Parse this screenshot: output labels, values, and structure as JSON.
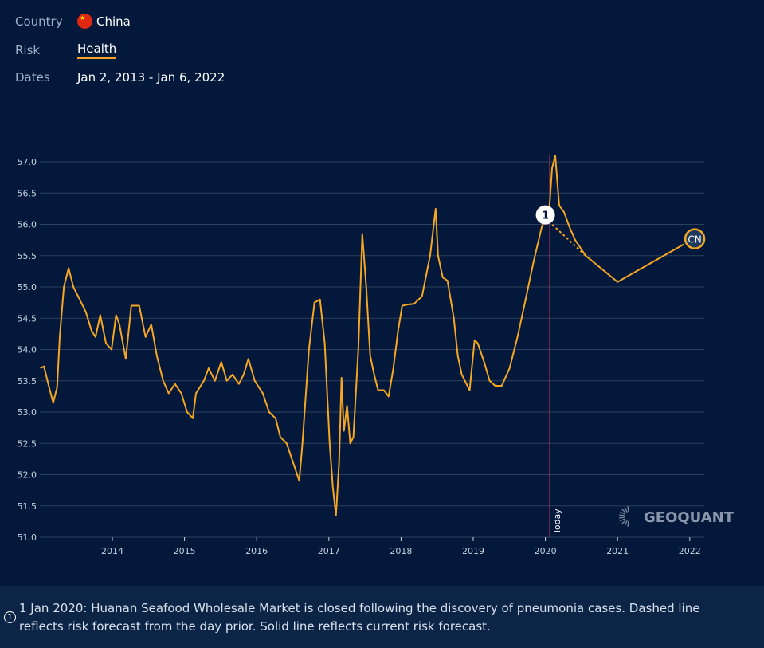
{
  "filters": {
    "country_label": "Country",
    "country_value": "China",
    "country_flag": "china-flag-icon",
    "risk_label": "Risk",
    "risk_value": "Health",
    "dates_label": "Dates",
    "dates_value": "Jan 2, 2013 - Jan 6, 2022"
  },
  "colors": {
    "background": "#03183a",
    "line": "#f5a623",
    "today": "#e0394a",
    "grid": "#2c3f5e"
  },
  "chart_data": {
    "type": "line",
    "title": "",
    "xlabel": "",
    "ylabel": "",
    "ylim": [
      51.0,
      57.0
    ],
    "xlim": [
      "2013-01-02",
      "2022-01-06"
    ],
    "yticks": [
      "51.0",
      "51.5",
      "52.0",
      "52.5",
      "53.0",
      "53.5",
      "54.0",
      "54.5",
      "55.0",
      "55.5",
      "56.0",
      "56.5",
      "57.0"
    ],
    "xticks": [
      "2014",
      "2015",
      "2016",
      "2017",
      "2018",
      "2019",
      "2020",
      "2021",
      "2022"
    ],
    "grid": true,
    "today": {
      "date": "2020-01-23",
      "label": "Today"
    },
    "annotation": {
      "date": "2020-01-01",
      "value": 56.1,
      "label": "1"
    },
    "end_label": "CN",
    "watermark": "GEOQUANT",
    "series": [
      {
        "points": [
          [
            "2013-01-02",
            53.7
          ],
          [
            "2013-01-20",
            53.73
          ],
          [
            "2013-02-15",
            53.4
          ],
          [
            "2013-03-08",
            53.15
          ],
          [
            "2013-03-28",
            53.4
          ],
          [
            "2013-04-10",
            54.2
          ],
          [
            "2013-05-01",
            55.0
          ],
          [
            "2013-05-25",
            55.3
          ],
          [
            "2013-06-18",
            55.0
          ],
          [
            "2013-07-20",
            54.8
          ],
          [
            "2013-08-20",
            54.6
          ],
          [
            "2013-09-18",
            54.3
          ],
          [
            "2013-10-08",
            54.2
          ],
          [
            "2013-11-01",
            54.55
          ],
          [
            "2013-11-30",
            54.1
          ],
          [
            "2013-12-28",
            54.0
          ],
          [
            "2014-01-20",
            54.55
          ],
          [
            "2014-02-06",
            54.4
          ],
          [
            "2014-03-10",
            53.85
          ],
          [
            "2014-04-07",
            54.7
          ],
          [
            "2014-05-17",
            54.7
          ],
          [
            "2014-06-18",
            54.2
          ],
          [
            "2014-07-17",
            54.4
          ],
          [
            "2014-08-14",
            53.9
          ],
          [
            "2014-09-15",
            53.5
          ],
          [
            "2014-10-13",
            53.3
          ],
          [
            "2014-11-14",
            53.45
          ],
          [
            "2014-12-16",
            53.3
          ],
          [
            "2015-01-14",
            53.0
          ],
          [
            "2015-02-12",
            52.9
          ],
          [
            "2015-02-28",
            53.3
          ],
          [
            "2015-04-09",
            53.5
          ],
          [
            "2015-05-03",
            53.7
          ],
          [
            "2015-06-04",
            53.5
          ],
          [
            "2015-07-06",
            53.8
          ],
          [
            "2015-08-03",
            53.5
          ],
          [
            "2015-09-01",
            53.6
          ],
          [
            "2015-10-03",
            53.45
          ],
          [
            "2015-10-27",
            53.6
          ],
          [
            "2015-11-20",
            53.85
          ],
          [
            "2015-12-22",
            53.5
          ],
          [
            "2016-02-01",
            53.3
          ],
          [
            "2016-03-04",
            53.0
          ],
          [
            "2016-04-06",
            52.9
          ],
          [
            "2016-04-30",
            52.6
          ],
          [
            "2016-06-01",
            52.5
          ],
          [
            "2016-07-03",
            52.2
          ],
          [
            "2016-08-04",
            51.9
          ],
          [
            "2016-08-20",
            52.5
          ],
          [
            "2016-09-22",
            54.0
          ],
          [
            "2016-10-20",
            54.75
          ],
          [
            "2016-11-17",
            54.8
          ],
          [
            "2016-12-11",
            54.1
          ],
          [
            "2017-01-05",
            52.5
          ],
          [
            "2017-01-21",
            51.8
          ],
          [
            "2017-02-06",
            51.35
          ],
          [
            "2017-02-22",
            52.2
          ],
          [
            "2017-03-06",
            53.55
          ],
          [
            "2017-03-18",
            52.7
          ],
          [
            "2017-04-03",
            53.1
          ],
          [
            "2017-04-19",
            52.5
          ],
          [
            "2017-05-05",
            52.6
          ],
          [
            "2017-05-30",
            54.0
          ],
          [
            "2017-06-19",
            55.85
          ],
          [
            "2017-07-09",
            55.0
          ],
          [
            "2017-07-29",
            53.9
          ],
          [
            "2017-08-18",
            53.6
          ],
          [
            "2017-09-07",
            53.35
          ],
          [
            "2017-10-06",
            53.35
          ],
          [
            "2017-10-30",
            53.25
          ],
          [
            "2017-11-23",
            53.7
          ],
          [
            "2017-12-17",
            54.3
          ],
          [
            "2018-01-07",
            54.7
          ],
          [
            "2018-02-04",
            54.72
          ],
          [
            "2018-03-08",
            54.73
          ],
          [
            "2018-04-17",
            54.85
          ],
          [
            "2018-05-28",
            55.5
          ],
          [
            "2018-06-25",
            56.25
          ],
          [
            "2018-07-07",
            55.5
          ],
          [
            "2018-07-31",
            55.15
          ],
          [
            "2018-08-24",
            55.1
          ],
          [
            "2018-09-25",
            54.5
          ],
          [
            "2018-10-15",
            53.9
          ],
          [
            "2018-11-04",
            53.6
          ],
          [
            "2018-12-14",
            53.35
          ],
          [
            "2019-01-08",
            54.15
          ],
          [
            "2019-01-24",
            54.1
          ],
          [
            "2019-02-25",
            53.8
          ],
          [
            "2019-03-25",
            53.5
          ],
          [
            "2019-04-22",
            53.42
          ],
          [
            "2019-05-25",
            53.42
          ],
          [
            "2019-07-04",
            53.7
          ],
          [
            "2019-08-13",
            54.2
          ],
          [
            "2019-09-23",
            54.8
          ],
          [
            "2019-11-02",
            55.4
          ],
          [
            "2019-12-13",
            55.95
          ],
          [
            "2020-01-22",
            56.3
          ],
          [
            "2020-02-04",
            56.9
          ],
          [
            "2020-02-20",
            57.1
          ],
          [
            "2020-03-11",
            56.3
          ],
          [
            "2020-04-04",
            56.2
          ],
          [
            "2020-05-03",
            55.95
          ],
          [
            "2020-05-31",
            55.75
          ],
          [
            "2020-07-23",
            55.5
          ],
          [
            "2021-01-01",
            55.08
          ],
          [
            "2021-12-01",
            55.68
          ]
        ]
      }
    ],
    "dashed_forecast": [
      [
        "2020-01-01",
        56.1
      ],
      [
        "2020-07-23",
        55.5
      ]
    ]
  },
  "footnote": {
    "badge": "1",
    "text": "1 Jan 2020: Huanan Seafood Wholesale Market is closed following the discovery of pneumonia cases. Dashed line reflects risk forecast from the day prior. Solid line reflects current risk forecast."
  }
}
